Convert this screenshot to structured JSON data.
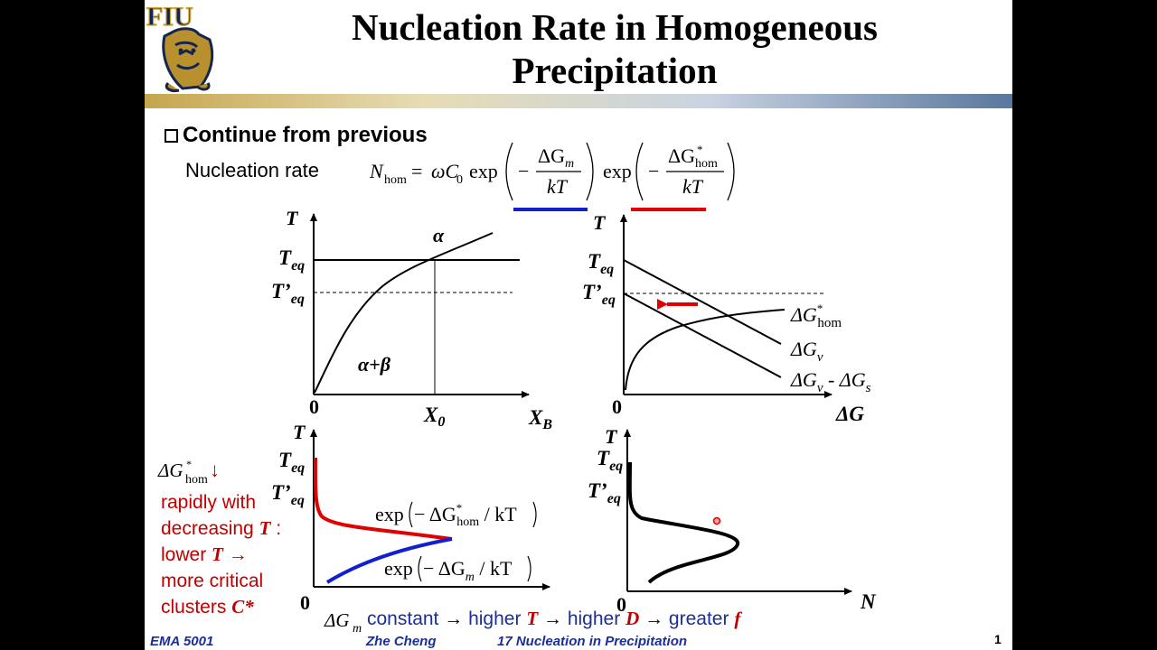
{
  "slide": {
    "title_line1": "Nucleation Rate in Homogeneous",
    "title_line2": "Precipitation",
    "logo_text": "FIU",
    "bullet": "Continue from previous",
    "nucleation_label": "Nucleation rate",
    "footer": {
      "course": "EMA 5001",
      "author": "Zhe Cheng",
      "lecture": "17  Nucleation in Precipitation",
      "page": "1"
    },
    "colors": {
      "blue": "#1020d0",
      "red": "#e00000",
      "dark_red": "#c00000",
      "footer_blue": "#1a2f9a"
    }
  },
  "red_note": {
    "line1_rest": "rapidly with",
    "line2": "decreasing",
    "line2_var": "T",
    "line2_end": ":",
    "line3": "lower",
    "line3_var": "T",
    "line3_arrow": "→",
    "line4": "more critical",
    "line5": "clusters",
    "line5_var": "C*"
  },
  "bottom_note": {
    "t1": "constant",
    "t2": "higher",
    "v1": "T",
    "t3": "higher",
    "v2": "D",
    "t4": "greater",
    "v3": "f",
    "arrow": "→"
  },
  "plots": {
    "phase_diagram": {
      "t_axis": "T",
      "x_axis": "X",
      "x_sub": "B",
      "origin": "0",
      "x0": "X",
      "x0_sub": "0",
      "teq": "T",
      "teq_sub": "eq",
      "tpeq": "T’",
      "alpha": "α",
      "alpha_beta": "α+β"
    },
    "dg_plot": {
      "t_axis": "T",
      "x_axis": "ΔG",
      "origin": "0",
      "teq": "T",
      "teq_sub": "eq",
      "tpeq": "T’",
      "c1": "ΔG",
      "c1_sup": "*",
      "c1_sub": "hom",
      "c2": "ΔG",
      "c2_sub": "v",
      "c3": "ΔG",
      "c3_sub": "v",
      "c3_dash": " - ΔG",
      "c3_sub2": "s"
    },
    "exp_plot": {
      "t_axis": "T",
      "origin": "0",
      "teq": "T",
      "teq_sub": "eq",
      "tpeq": "T’",
      "e1": "exp",
      "e1_inner": "− ΔG",
      "e1_sup": "*",
      "e1_sub": "hom",
      "e1_end": " / kT",
      "e2": "exp",
      "e2_inner": "− ΔG",
      "e2_sub": "m",
      "e2_end": " / kT"
    },
    "n_plot": {
      "t_axis": "T",
      "x_axis": "N",
      "origin": "0",
      "teq": "T",
      "teq_sub": "eq",
      "tpeq": "T’"
    }
  }
}
